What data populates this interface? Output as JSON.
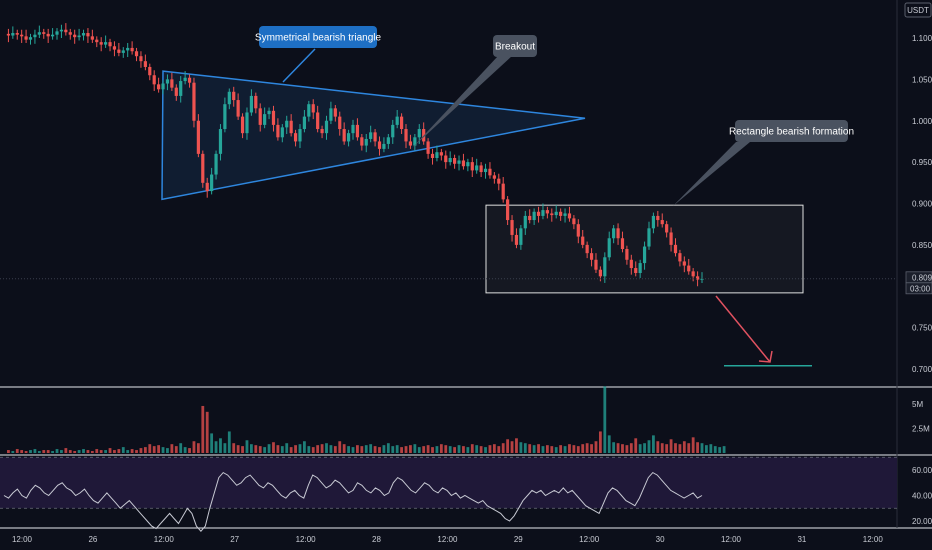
{
  "chart_data": {
    "type": "candlestick",
    "symbol_currency": "USDT",
    "price_axis": {
      "range": [
        0.68,
        1.12
      ],
      "ticks": [
        "1.100",
        "1.050",
        "1.000",
        "0.950",
        "0.900",
        "0.850",
        "0.750",
        "0.700"
      ],
      "tick_values": [
        1.1,
        1.05,
        1.0,
        0.95,
        0.9,
        0.85,
        0.75,
        0.7
      ]
    },
    "last_price": {
      "value": 0.809,
      "label": "0.809",
      "countdown": "03:00"
    },
    "time_axis": {
      "labels": [
        "12:00",
        "26",
        "12:00",
        "27",
        "12:00",
        "28",
        "12:00",
        "29",
        "12:00",
        "30",
        "12:00",
        "31",
        "12:00"
      ]
    },
    "volume_axis": {
      "ticks": [
        "5M",
        "2.5M"
      ],
      "tick_values": [
        5.0,
        2.5
      ]
    },
    "rsi_axis": {
      "range": [
        10,
        70
      ],
      "ticks": [
        "60.00",
        "40.00",
        "20.00"
      ],
      "tick_values": [
        60,
        40,
        20
      ],
      "band": [
        30,
        70
      ]
    },
    "price_levels": [
      1.105,
      1.103,
      1.106,
      1.104,
      1.102,
      1.098,
      1.101,
      1.104,
      1.107,
      1.105,
      1.102,
      1.104,
      1.108,
      1.11,
      1.107,
      1.104,
      1.101,
      1.103,
      1.106,
      1.102,
      1.098,
      1.095,
      1.092,
      1.095,
      1.09,
      1.086,
      1.082,
      1.085,
      1.088,
      1.084,
      1.078,
      1.072,
      1.065,
      1.055,
      1.044,
      1.038,
      1.045,
      1.05,
      1.04,
      1.03,
      1.048,
      1.052,
      1.046,
      1.0,
      0.96,
      0.925,
      0.915,
      0.935,
      0.96,
      0.99,
      1.02,
      1.035,
      1.025,
      1.005,
      0.985,
      1.01,
      1.03,
      1.015,
      0.995,
      1.008,
      1.012,
      0.995,
      0.98,
      0.992,
      1.0,
      0.985,
      0.975,
      0.99,
      1.005,
      1.02,
      1.01,
      0.99,
      0.985,
      1.0,
      1.015,
      1.005,
      0.99,
      0.975,
      0.985,
      0.995,
      0.98,
      0.97,
      0.978,
      0.986,
      0.975,
      0.966,
      0.972,
      0.98,
      0.995,
      1.005,
      0.99,
      0.975,
      0.97,
      0.98,
      0.99,
      0.975,
      0.96,
      0.955,
      0.962,
      0.958,
      0.95,
      0.955,
      0.948,
      0.952,
      0.945,
      0.95,
      0.94,
      0.946,
      0.938,
      0.942,
      0.934,
      0.93,
      0.924,
      0.905,
      0.88,
      0.862,
      0.85,
      0.87,
      0.885,
      0.88,
      0.89,
      0.885,
      0.892,
      0.888,
      0.886,
      0.89,
      0.885,
      0.888,
      0.882,
      0.875,
      0.86,
      0.85,
      0.84,
      0.832,
      0.82,
      0.812,
      0.835,
      0.858,
      0.87,
      0.858,
      0.845,
      0.832,
      0.822,
      0.816,
      0.828,
      0.848,
      0.87,
      0.885,
      0.88,
      0.875,
      0.865,
      0.85,
      0.84,
      0.83,
      0.825,
      0.818,
      0.812,
      0.808,
      0.809
    ],
    "volume_values": [
      0.3,
      0.2,
      0.4,
      0.3,
      0.2,
      0.3,
      0.4,
      0.2,
      0.3,
      0.3,
      0.2,
      0.4,
      0.3,
      0.5,
      0.3,
      0.2,
      0.3,
      0.4,
      0.3,
      0.2,
      0.4,
      0.3,
      0.3,
      0.5,
      0.3,
      0.4,
      0.6,
      0.3,
      0.4,
      0.3,
      0.5,
      0.6,
      0.9,
      0.7,
      0.8,
      0.6,
      0.5,
      0.9,
      0.7,
      1.0,
      0.6,
      0.5,
      1.2,
      1.0,
      4.8,
      4.2,
      2.0,
      1.2,
      1.5,
      1.0,
      2.2,
      1.0,
      0.8,
      0.7,
      1.3,
      0.9,
      0.8,
      0.7,
      0.6,
      0.9,
      1.1,
      0.8,
      0.7,
      1.0,
      0.6,
      0.8,
      0.9,
      1.2,
      0.7,
      0.6,
      0.8,
      0.9,
      1.0,
      0.8,
      0.7,
      1.2,
      0.9,
      0.7,
      0.6,
      0.8,
      0.7,
      0.8,
      0.9,
      0.7,
      0.6,
      0.8,
      1.0,
      0.7,
      0.8,
      0.6,
      0.7,
      0.8,
      0.9,
      0.6,
      0.7,
      0.8,
      0.6,
      0.7,
      0.9,
      0.8,
      0.7,
      0.6,
      0.8,
      0.7,
      0.6,
      0.9,
      0.8,
      0.7,
      0.6,
      0.8,
      0.9,
      0.7,
      1.0,
      1.4,
      1.2,
      1.5,
      1.1,
      1.0,
      0.9,
      0.8,
      0.9,
      0.7,
      0.8,
      0.7,
      0.6,
      0.8,
      0.7,
      0.9,
      0.8,
      0.7,
      0.9,
      1.0,
      0.9,
      1.2,
      2.2,
      6.8,
      1.8,
      1.1,
      1.0,
      0.9,
      0.8,
      1.0,
      1.5,
      0.9,
      1.0,
      1.3,
      1.8,
      1.2,
      1.0,
      0.9,
      1.4,
      1.0,
      0.9,
      1.2,
      1.0,
      1.6,
      1.1,
      1.0,
      0.8,
      0.9,
      0.7,
      0.6,
      0.7
    ],
    "rsi_values": [
      40,
      38,
      42,
      45,
      40,
      38,
      44,
      48,
      46,
      42,
      40,
      44,
      48,
      50,
      46,
      44,
      40,
      42,
      45,
      40,
      36,
      34,
      38,
      42,
      38,
      34,
      30,
      33,
      36,
      32,
      28,
      24,
      20,
      16,
      14,
      18,
      22,
      26,
      22,
      18,
      24,
      30,
      26,
      16,
      12,
      16,
      30,
      42,
      54,
      58,
      56,
      52,
      48,
      50,
      54,
      56,
      52,
      48,
      46,
      50,
      48,
      44,
      40,
      38,
      42,
      44,
      40,
      38,
      48,
      56,
      54,
      50,
      46,
      48,
      52,
      50,
      46,
      42,
      44,
      50,
      48,
      44,
      42,
      46,
      44,
      40,
      42,
      50,
      54,
      52,
      48,
      44,
      42,
      46,
      50,
      48,
      44,
      42,
      46,
      44,
      40,
      42,
      38,
      40,
      38,
      36,
      34,
      36,
      32,
      30,
      28,
      26,
      22,
      20,
      24,
      30,
      36,
      40,
      44,
      42,
      44,
      40,
      42,
      44,
      42,
      46,
      42,
      44,
      40,
      36,
      32,
      30,
      28,
      26,
      34,
      42,
      46,
      44,
      40,
      36,
      34,
      32,
      38,
      46,
      54,
      58,
      56,
      52,
      48,
      44,
      42,
      40,
      38,
      40,
      42,
      38,
      40
    ],
    "annotations": {
      "triangle_label": "Symmetrical bearish triangle",
      "breakout_label": "Breakout",
      "rectangle_label": "Rectangle bearish formation",
      "triangle": {
        "apex_price": 1.003,
        "top_price": 1.06,
        "bottom_price": 0.905
      },
      "rectangle": {
        "top_price": 0.898,
        "bottom_price": 0.792
      },
      "target_price": 0.704
    },
    "colors": {
      "up": "#26a69a",
      "down": "#ef5350",
      "triangle_line": "#2e86de",
      "triangle_label_bg": "#1e6fc4",
      "callout_bg": "#4a5260",
      "rectangle_line": "#e0e0e0",
      "arrow": "#e05260",
      "target_line": "#26a69a",
      "rsi_line": "#c7c9d3",
      "rsi_band_bg": "#1f1838"
    }
  }
}
